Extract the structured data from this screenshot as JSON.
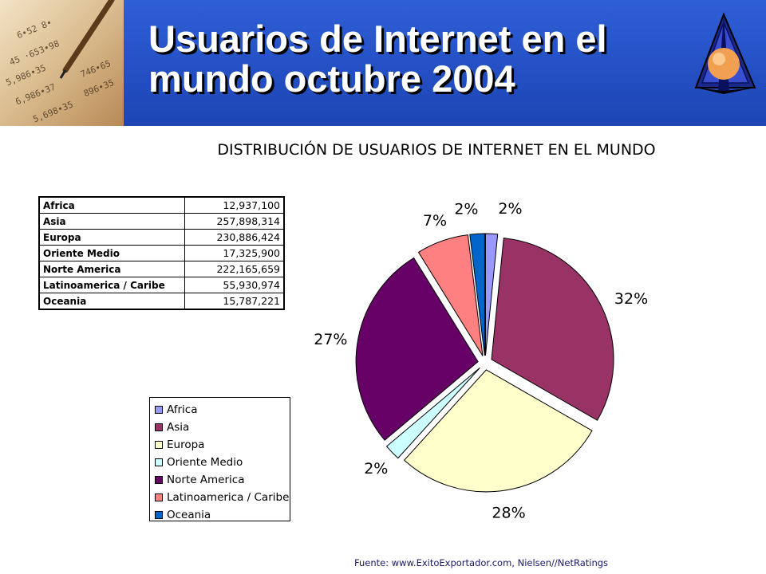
{
  "slide": {
    "title": "Usuarios de Internet en el mundo octubre 2004",
    "source": "Fuente: www.ExitoExportador.com,  Nielsen//NetRatings"
  },
  "table": {
    "rows": [
      {
        "region": "Africa",
        "value": "12,937,100"
      },
      {
        "region": "Asia",
        "value": "257,898,314"
      },
      {
        "region": "Europa",
        "value": "230,886,424"
      },
      {
        "region": "Oriente Medio",
        "value": "17,325,900"
      },
      {
        "region": "Norte America",
        "value": "222,165,659"
      },
      {
        "region": "Latinoamerica / Caribe",
        "value": "55,930,974"
      },
      {
        "region": "Oceania",
        "value": "15,787,221"
      }
    ]
  },
  "chart_data": {
    "type": "pie",
    "title": "DISTRIBUCIÓN DE USUARIOS DE INTERNET EN EL MUNDO",
    "legend_position": "bottom-left",
    "categories": [
      "Africa",
      "Asia",
      "Europa",
      "Oriente Medio",
      "Norte America",
      "Latinoamerica / Caribe",
      "Oceania"
    ],
    "values": [
      12937100,
      257898314,
      230886424,
      17325900,
      222165659,
      55930974,
      15787221
    ],
    "data_labels": [
      "2%",
      "32%",
      "28%",
      "2%",
      "27%",
      "7%",
      "2%"
    ],
    "colors": [
      "#9999FF",
      "#993366",
      "#FFFFCC",
      "#CCFFFF",
      "#660066",
      "#FF8080",
      "#0066CC"
    ]
  }
}
